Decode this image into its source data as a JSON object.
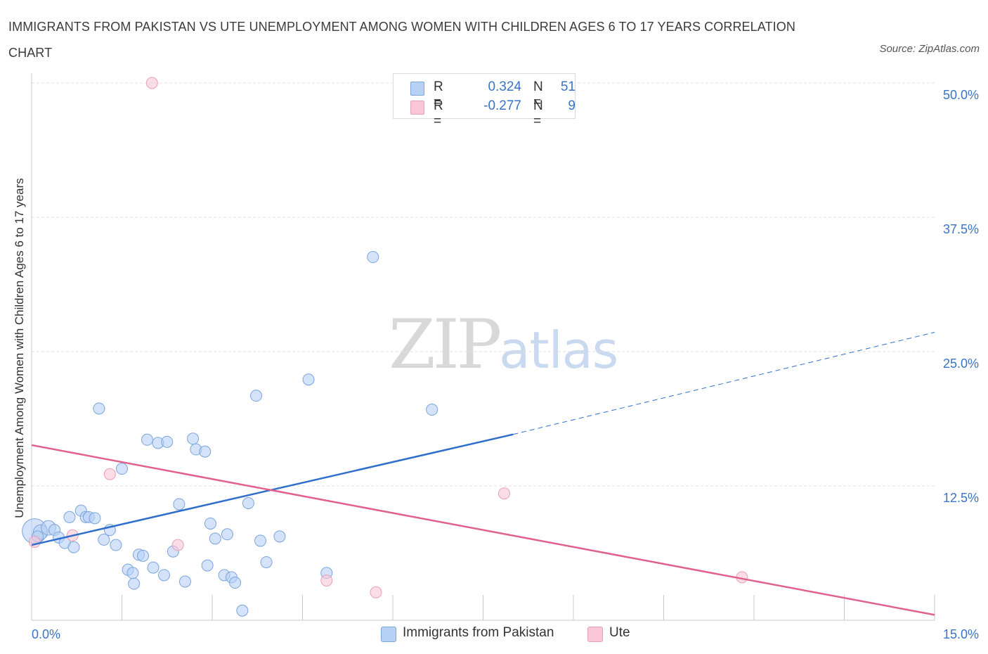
{
  "header": {
    "title": "IMMIGRANTS FROM PAKISTAN VS UTE UNEMPLOYMENT AMONG WOMEN WITH CHILDREN AGES 6 TO 17 YEARS CORRELATION CHART",
    "source": "Source: ZipAtlas.com"
  },
  "watermark": {
    "zip": "ZIP",
    "atlas": "atlas"
  },
  "legend": {
    "rows": [
      {
        "r_label": "R =",
        "r_value": "0.324",
        "n_label": "N =",
        "n_value": "51",
        "color": "#b7d1f5"
      },
      {
        "r_label": "R =",
        "r_value": "-0.277",
        "n_label": "N =",
        "n_value": "9",
        "color": "#f9c6d6"
      }
    ]
  },
  "colors": {
    "pakistan_fill": "#b7d1f5",
    "pakistan_stroke": "#7aa4dc",
    "pakistan_line": "#2f6fc9",
    "ute_fill": "#f9c6d6",
    "ute_stroke": "#e8a0b8",
    "ute_line": "#e0608e",
    "grid": "#e0e0e0",
    "tick_label": "#3a73c6"
  },
  "chart_data": {
    "type": "scatter",
    "title": "IMMIGRANTS FROM PAKISTAN VS UTE UNEMPLOYMENT AMONG WOMEN WITH CHILDREN AGES 6 TO 17 YEARS CORRELATION CHART",
    "xlabel": "",
    "ylabel": "Unemployment Among Women with Children Ages 6 to 17 years",
    "xlim": [
      0,
      15
    ],
    "ylim": [
      0,
      50
    ],
    "x_tick_labels": [
      "0.0%",
      "15.0%"
    ],
    "y_ticks": [
      12.5,
      25.0,
      37.5,
      50.0
    ],
    "y_tick_labels": [
      "12.5%",
      "25.0%",
      "37.5%",
      "50.0%"
    ],
    "grid": true,
    "legend_position": "top-center",
    "series": [
      {
        "name": "Immigrants from Pakistan",
        "R": 0.324,
        "N": 51,
        "trend": {
          "x_start": 0.0,
          "y_start": 7.0,
          "x_solid_end": 8.0,
          "y_solid_end": 17.3,
          "x_end": 15.0,
          "y_end": 26.8
        },
        "points": [
          {
            "x": 0.05,
            "y": 8.3,
            "s": 2.2
          },
          {
            "x": 0.15,
            "y": 8.2,
            "s": 1.3
          },
          {
            "x": 0.28,
            "y": 8.6,
            "s": 1.3
          },
          {
            "x": 0.38,
            "y": 8.4,
            "s": 1
          },
          {
            "x": 0.45,
            "y": 7.7,
            "s": 1
          },
          {
            "x": 0.55,
            "y": 7.2,
            "s": 1
          },
          {
            "x": 0.7,
            "y": 6.8,
            "s": 1
          },
          {
            "x": 0.63,
            "y": 9.6,
            "s": 1
          },
          {
            "x": 0.82,
            "y": 10.2,
            "s": 1
          },
          {
            "x": 0.9,
            "y": 9.6,
            "s": 1
          },
          {
            "x": 0.95,
            "y": 9.6,
            "s": 1
          },
          {
            "x": 1.05,
            "y": 9.5,
            "s": 1
          },
          {
            "x": 1.2,
            "y": 7.5,
            "s": 1
          },
          {
            "x": 1.3,
            "y": 8.4,
            "s": 1
          },
          {
            "x": 1.4,
            "y": 7.0,
            "s": 1
          },
          {
            "x": 1.5,
            "y": 14.1,
            "s": 1
          },
          {
            "x": 1.12,
            "y": 19.7,
            "s": 1
          },
          {
            "x": 1.6,
            "y": 4.7,
            "s": 1
          },
          {
            "x": 1.7,
            "y": 3.4,
            "s": 1
          },
          {
            "x": 1.68,
            "y": 4.4,
            "s": 1
          },
          {
            "x": 1.78,
            "y": 6.1,
            "s": 1
          },
          {
            "x": 1.85,
            "y": 6.0,
            "s": 1
          },
          {
            "x": 1.92,
            "y": 16.8,
            "s": 1
          },
          {
            "x": 2.02,
            "y": 4.9,
            "s": 1
          },
          {
            "x": 2.1,
            "y": 16.5,
            "s": 1
          },
          {
            "x": 2.2,
            "y": 4.2,
            "s": 1
          },
          {
            "x": 2.25,
            "y": 16.6,
            "s": 1
          },
          {
            "x": 2.35,
            "y": 6.4,
            "s": 1
          },
          {
            "x": 2.45,
            "y": 10.8,
            "s": 1
          },
          {
            "x": 2.55,
            "y": 3.6,
            "s": 1
          },
          {
            "x": 2.68,
            "y": 16.9,
            "s": 1
          },
          {
            "x": 2.73,
            "y": 15.9,
            "s": 1
          },
          {
            "x": 2.88,
            "y": 15.7,
            "s": 1
          },
          {
            "x": 2.92,
            "y": 5.1,
            "s": 1
          },
          {
            "x": 2.97,
            "y": 9.0,
            "s": 1
          },
          {
            "x": 3.05,
            "y": 7.6,
            "s": 1
          },
          {
            "x": 3.2,
            "y": 4.2,
            "s": 1
          },
          {
            "x": 3.25,
            "y": 8.0,
            "s": 1
          },
          {
            "x": 3.32,
            "y": 4.0,
            "s": 1
          },
          {
            "x": 3.38,
            "y": 3.5,
            "s": 1
          },
          {
            "x": 3.5,
            "y": 0.9,
            "s": 1
          },
          {
            "x": 3.6,
            "y": 10.9,
            "s": 1
          },
          {
            "x": 3.73,
            "y": 20.9,
            "s": 1
          },
          {
            "x": 3.8,
            "y": 7.4,
            "s": 1
          },
          {
            "x": 3.9,
            "y": 5.4,
            "s": 1
          },
          {
            "x": 4.12,
            "y": 7.8,
            "s": 1
          },
          {
            "x": 4.6,
            "y": 22.4,
            "s": 1
          },
          {
            "x": 4.9,
            "y": 4.4,
            "s": 1
          },
          {
            "x": 5.67,
            "y": 33.8,
            "s": 1
          },
          {
            "x": 6.65,
            "y": 19.6,
            "s": 1
          },
          {
            "x": 0.1,
            "y": 7.8,
            "s": 1
          }
        ]
      },
      {
        "name": "Ute",
        "R": -0.277,
        "N": 9,
        "trend": {
          "x_start": 0.0,
          "y_start": 16.3,
          "x_end": 15.0,
          "y_end": 0.5
        },
        "points": [
          {
            "x": 0.05,
            "y": 7.3,
            "s": 1
          },
          {
            "x": 0.68,
            "y": 7.9,
            "s": 1
          },
          {
            "x": 1.3,
            "y": 13.6,
            "s": 1
          },
          {
            "x": 2.0,
            "y": 50.0,
            "s": 1
          },
          {
            "x": 2.43,
            "y": 7.0,
            "s": 1
          },
          {
            "x": 4.9,
            "y": 3.7,
            "s": 1
          },
          {
            "x": 5.72,
            "y": 2.6,
            "s": 1
          },
          {
            "x": 7.85,
            "y": 11.8,
            "s": 1
          },
          {
            "x": 11.8,
            "y": 4.0,
            "s": 1
          }
        ]
      }
    ]
  }
}
